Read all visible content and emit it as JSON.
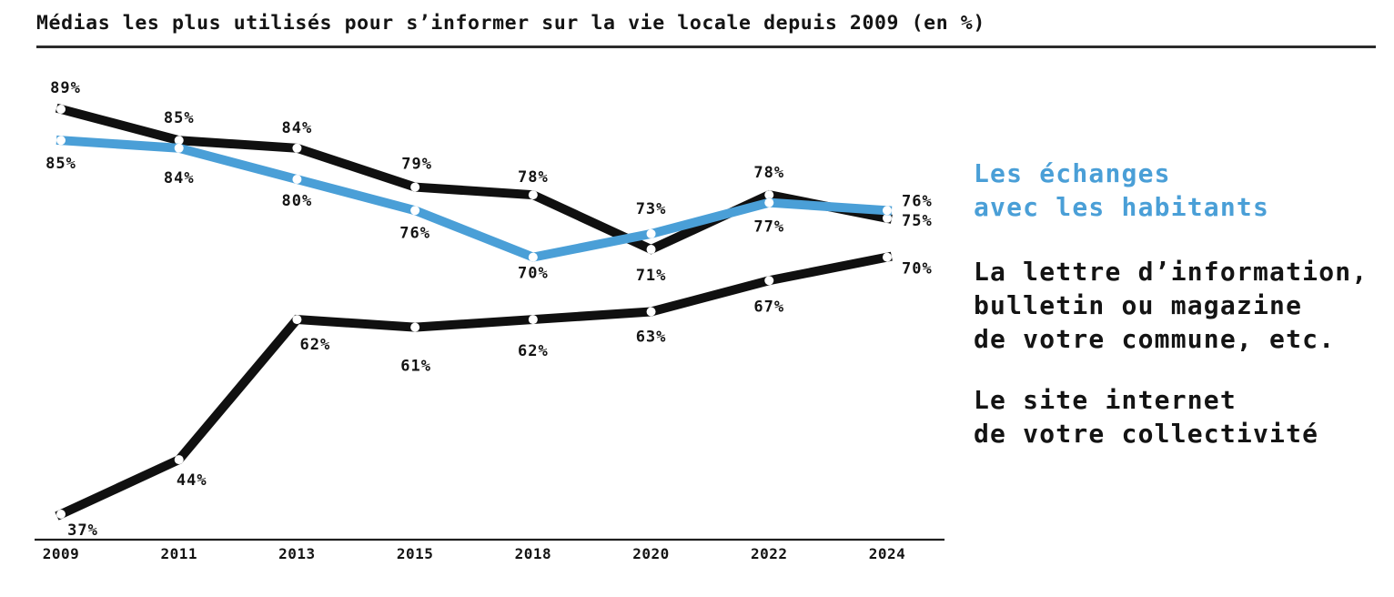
{
  "title": "Médias les plus utilisés pour s’informer sur la vie locale depuis 2009 (en %)",
  "colors": {
    "line_black": "#101010",
    "line_blue": "#4a9fd7",
    "label_text": "#141414",
    "axis": "#1f1f1f",
    "title_underline": "#2b2b2b"
  },
  "legend": {
    "items": [
      {
        "id": "echanges",
        "color": "#4a9fd7",
        "lines": [
          "Les échanges",
          "avec les habitants"
        ]
      },
      {
        "id": "lettre",
        "color": "#141414",
        "lines": [
          "La lettre d’information,",
          "bulletin ou magazine",
          "de votre commune, etc."
        ]
      },
      {
        "id": "site",
        "color": "#141414",
        "lines": [
          "Le site internet",
          "de votre collectivité"
        ]
      }
    ]
  },
  "chart_data": {
    "type": "line",
    "title": "Médias les plus utilisés pour s’informer sur la vie locale depuis 2009 (en %)",
    "x": [
      "2009",
      "2011",
      "2013",
      "2015",
      "2018",
      "2020",
      "2022",
      "2024"
    ],
    "unit": "%",
    "ylim": [
      33,
      95
    ],
    "grid": false,
    "legend_position": "right",
    "series": [
      {
        "name": "La lettre d’information, bulletin ou magazine de votre commune, etc.",
        "color": "#101010",
        "values": [
          89,
          85,
          84,
          79,
          78,
          71,
          78,
          75
        ],
        "label_sides": [
          "a",
          "a",
          "a",
          "a",
          "a",
          "b",
          "a",
          "r"
        ],
        "label_dx": [
          5,
          0,
          0,
          2,
          0,
          0,
          0,
          16
        ],
        "label_dy": [
          -18,
          -19,
          -17,
          -20,
          -14,
          34,
          -19,
          8
        ]
      },
      {
        "name": "Les échanges avec les habitants",
        "color": "#4a9fd7",
        "values": [
          85,
          84,
          80,
          76,
          70,
          73,
          77,
          76
        ],
        "label_sides": [
          "b",
          "b",
          "b",
          "b",
          "b",
          "a",
          "b",
          "r"
        ],
        "label_dx": [
          0,
          0,
          0,
          0,
          0,
          0,
          0,
          16
        ],
        "label_dy": [
          31,
          38,
          29,
          30,
          23,
          -22,
          32,
          -5
        ]
      },
      {
        "name": "Le site internet de votre collectivité",
        "color": "#101010",
        "values": [
          37,
          44,
          62,
          61,
          62,
          63,
          67,
          70
        ],
        "label_sides": [
          "b",
          "b",
          "b",
          "b",
          "b",
          "b",
          "b",
          "r"
        ],
        "label_dx": [
          24,
          14,
          20,
          1,
          0,
          0,
          0,
          16
        ],
        "label_dy": [
          23,
          28,
          33,
          48,
          40,
          33,
          34,
          18
        ]
      }
    ]
  }
}
